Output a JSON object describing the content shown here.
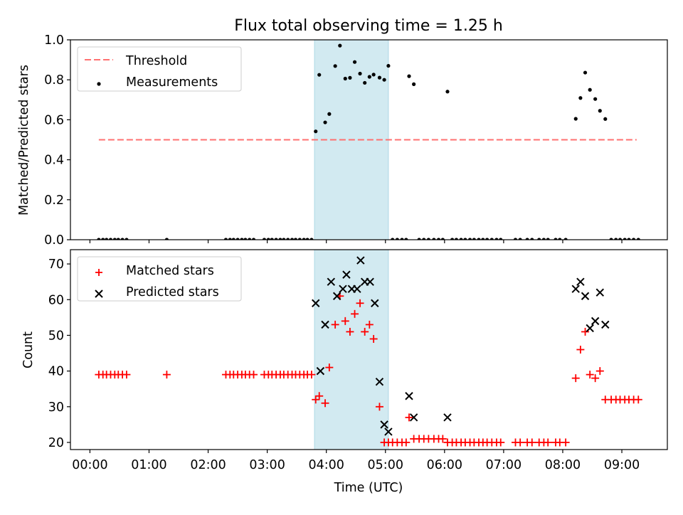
{
  "title": "Flux total observing time = 1.25 h",
  "xlabel": "Time (UTC)",
  "x_ticks": [
    "00:00",
    "01:00",
    "02:00",
    "03:00",
    "04:00",
    "05:00",
    "06:00",
    "07:00",
    "08:00",
    "09:00"
  ],
  "colors": {
    "highlight": "#add8e6",
    "threshold": "#ff7070",
    "measurements": "#000000",
    "matched": "#ff0000",
    "predicted": "#000000"
  },
  "chart_data": [
    {
      "type": "scatter",
      "ylabel": "Matched/Predicted stars",
      "xlim": [
        -0.33,
        9.77
      ],
      "ylim": [
        0,
        1.0
      ],
      "y_ticks": [
        0.0,
        0.2,
        0.4,
        0.6,
        0.8,
        1.0
      ],
      "y_tick_labels": [
        "0.0",
        "0.2",
        "0.4",
        "0.6",
        "0.8",
        "1.0"
      ],
      "highlight_span": [
        3.8,
        5.05
      ],
      "threshold": {
        "y": 0.5,
        "x_range": [
          0.15,
          9.25
        ]
      },
      "legend": {
        "position": "upper-left",
        "entries": [
          "Threshold",
          "Measurements"
        ]
      },
      "series": [
        {
          "name": "Measurements",
          "x": [
            0.15,
            0.22,
            0.28,
            0.35,
            0.42,
            0.48,
            0.55,
            0.62,
            1.3,
            2.3,
            2.37,
            2.43,
            2.5,
            2.57,
            2.63,
            2.7,
            2.77,
            2.95,
            3.02,
            3.08,
            3.15,
            3.22,
            3.28,
            3.35,
            3.42,
            3.48,
            3.55,
            3.62,
            3.68,
            3.75,
            3.82,
            3.88,
            3.98,
            4.05,
            4.15,
            4.23,
            4.32,
            4.4,
            4.48,
            4.57,
            4.65,
            4.73,
            4.8,
            4.9,
            4.98,
            5.05,
            5.12,
            5.2,
            5.28,
            5.35,
            5.4,
            5.48,
            5.57,
            5.65,
            5.73,
            5.82,
            5.9,
            5.97,
            6.05,
            6.13,
            6.2,
            6.28,
            6.35,
            6.43,
            6.5,
            6.58,
            6.65,
            6.72,
            6.8,
            6.88,
            6.95,
            7.2,
            7.28,
            7.4,
            7.48,
            7.6,
            7.68,
            7.75,
            7.88,
            7.95,
            8.05,
            8.22,
            8.3,
            8.38,
            8.46,
            8.55,
            8.63,
            8.72,
            8.82,
            8.9,
            8.97,
            9.05,
            9.12,
            9.2,
            9.28
          ],
          "y": [
            0,
            0,
            0,
            0,
            0,
            0,
            0,
            0,
            0,
            0,
            0,
            0,
            0,
            0,
            0,
            0,
            0,
            0,
            0,
            0,
            0,
            0,
            0,
            0,
            0,
            0,
            0,
            0,
            0,
            0,
            0.542,
            0.825,
            0.587,
            0.629,
            0.869,
            0.971,
            0.806,
            0.81,
            0.889,
            0.831,
            0.785,
            0.815,
            0.826,
            0.811,
            0.8,
            0.87,
            0,
            0,
            0,
            0,
            0.818,
            0.778,
            0,
            0,
            0,
            0,
            0,
            0,
            0.741,
            0,
            0,
            0,
            0,
            0,
            0,
            0,
            0,
            0,
            0,
            0,
            0,
            0,
            0,
            0,
            0,
            0,
            0,
            0,
            0,
            0,
            0,
            0.605,
            0.709,
            0.836,
            0.75,
            0.704,
            0.645,
            0.604,
            0,
            0,
            0,
            0,
            0,
            0,
            0
          ]
        }
      ]
    },
    {
      "type": "scatter",
      "ylabel": "Count",
      "xlim": [
        -0.33,
        9.77
      ],
      "ylim": [
        18,
        74
      ],
      "y_ticks": [
        20,
        30,
        40,
        50,
        60,
        70
      ],
      "y_tick_labels": [
        "20",
        "30",
        "40",
        "50",
        "60",
        "70"
      ],
      "highlight_span": [
        3.8,
        5.05
      ],
      "legend": {
        "position": "upper-left",
        "entries": [
          "Matched stars",
          "Predicted stars"
        ]
      },
      "series": [
        {
          "name": "Matched stars",
          "marker": "+",
          "x": [
            0.15,
            0.22,
            0.28,
            0.35,
            0.42,
            0.48,
            0.55,
            0.62,
            1.3,
            2.3,
            2.37,
            2.43,
            2.5,
            2.57,
            2.63,
            2.7,
            2.77,
            2.95,
            3.02,
            3.08,
            3.15,
            3.22,
            3.28,
            3.35,
            3.42,
            3.48,
            3.55,
            3.62,
            3.68,
            3.75,
            3.82,
            3.88,
            3.98,
            4.05,
            4.15,
            4.23,
            4.32,
            4.4,
            4.48,
            4.57,
            4.65,
            4.73,
            4.8,
            4.9,
            4.98,
            5.05,
            5.12,
            5.2,
            5.28,
            5.35,
            5.4,
            5.48,
            5.57,
            5.65,
            5.73,
            5.82,
            5.9,
            5.97,
            6.05,
            6.13,
            6.2,
            6.28,
            6.35,
            6.43,
            6.5,
            6.58,
            6.65,
            6.72,
            6.8,
            6.88,
            6.95,
            7.2,
            7.28,
            7.4,
            7.48,
            7.6,
            7.68,
            7.75,
            7.88,
            7.95,
            8.05,
            8.22,
            8.3,
            8.38,
            8.46,
            8.55,
            8.63,
            8.72,
            8.82,
            8.9,
            8.97,
            9.05,
            9.12,
            9.2,
            9.28
          ],
          "y": [
            39,
            39,
            39,
            39,
            39,
            39,
            39,
            39,
            39,
            39,
            39,
            39,
            39,
            39,
            39,
            39,
            39,
            39,
            39,
            39,
            39,
            39,
            39,
            39,
            39,
            39,
            39,
            39,
            39,
            39,
            32,
            33,
            31,
            41,
            53,
            61,
            54,
            51,
            56,
            59,
            51,
            53,
            49,
            30,
            20,
            20,
            20,
            20,
            20,
            20,
            27,
            21,
            21,
            21,
            21,
            21,
            21,
            21,
            20,
            20,
            20,
            20,
            20,
            20,
            20,
            20,
            20,
            20,
            20,
            20,
            20,
            20,
            20,
            20,
            20,
            20,
            20,
            20,
            20,
            20,
            20,
            38,
            46,
            51,
            39,
            38,
            40,
            32,
            32,
            32,
            32,
            32,
            32,
            32,
            32
          ]
        },
        {
          "name": "Predicted stars",
          "marker": "x",
          "x": [
            3.82,
            3.9,
            3.98,
            4.08,
            4.18,
            4.28,
            4.34,
            4.43,
            4.52,
            4.58,
            4.65,
            4.74,
            4.82,
            4.9,
            4.98,
            5.05,
            5.4,
            5.48,
            6.05,
            8.22,
            8.3,
            8.38,
            8.46,
            8.55,
            8.63,
            8.72
          ],
          "y": [
            59,
            40,
            53,
            65,
            61,
            63,
            67,
            63,
            63,
            71,
            65,
            65,
            59,
            37,
            25,
            23,
            33,
            27,
            27,
            63,
            65,
            61,
            52,
            54,
            62,
            53
          ]
        }
      ]
    }
  ]
}
